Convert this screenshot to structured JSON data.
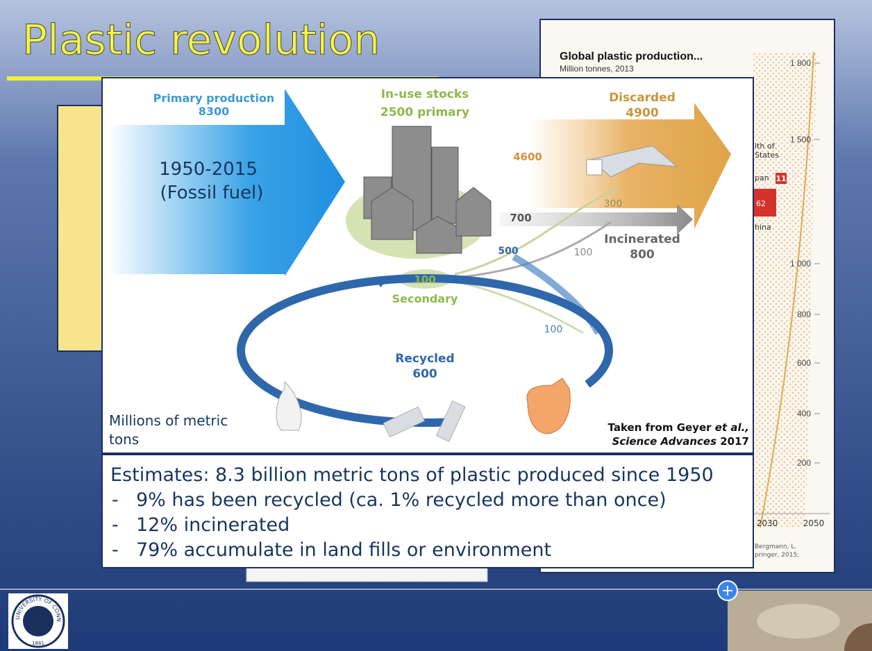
{
  "slide": {
    "title": "Plastic revolution"
  },
  "background_chart": {
    "title": "Global plastic production...",
    "subtitle": "Million tonnes, 2013",
    "yticks": [
      "1 800",
      "1 500",
      "1 000",
      "800",
      "600",
      "400",
      "200"
    ],
    "xticks": [
      "2030",
      "2050"
    ],
    "labels": [
      "lth of",
      "States",
      "pan",
      "11",
      "62",
      "hina"
    ],
    "source": [
      "Bergmann, L.",
      "pringer, 2015;"
    ]
  },
  "diagram": {
    "primary": {
      "label": "Primary production",
      "value": "8300",
      "period": "1950-2015",
      "source": "(Fossil fuel)"
    },
    "stocks": {
      "label": "In-use stocks",
      "value": "2500 primary"
    },
    "discarded": {
      "label": "Discarded",
      "value": "4900",
      "flow": "4600"
    },
    "flows": {
      "to_discard_from_recycling": "300",
      "to_incineration": "700",
      "to_recycling": "500",
      "recycled_incinerated": "100",
      "recycled_discarded": "100"
    },
    "incinerated": {
      "label": "Incinerated",
      "value": "800"
    },
    "secondary": {
      "value": "100",
      "label": "Secondary"
    },
    "recycled": {
      "label": "Recycled",
      "value": "600"
    },
    "units": [
      "Millions of metric",
      "tons"
    ],
    "credit": {
      "prefix": "Taken from Geyer ",
      "italic": "et al.,",
      "journal": "Science Advances",
      "year": " 2017"
    }
  },
  "estimates": {
    "heading": "Estimates: 8.3 billion metric tons of plastic produced since 1950",
    "marker": "-",
    "bullets": [
      "9% has been recycled (ca. 1% recycled more than once)",
      "12% incinerated",
      "79% accumulate in land fills or environment"
    ]
  },
  "logo": {
    "name": "UNIVERSITY OF CONNECTICUT",
    "year": "1881"
  }
}
